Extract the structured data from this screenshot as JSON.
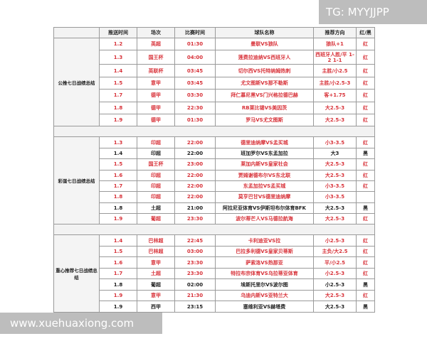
{
  "watermark_top": "TG: MYYJJPP",
  "watermark_bottom": "www.xuehuaxiong.com",
  "headers": [
    "",
    "推送时间",
    "场次",
    "比赛时间",
    "球队名称",
    "推荐方向",
    "红/黑"
  ],
  "sections": [
    {
      "label": "公推七日战绩总结",
      "rows": [
        {
          "date": "1.2",
          "league": "英超",
          "time": "01:30",
          "match": "曼联VS狼队",
          "pick": "狼队+1",
          "result": "红",
          "color": "red"
        },
        {
          "date": "1.3",
          "league": "国王杯",
          "time": "04:00",
          "match": "莲费拉迪纳VS西班牙人",
          "pick": "西班牙人胜/平 1-2 1-1",
          "result": "红",
          "color": "red"
        },
        {
          "date": "1.4",
          "league": "英联杯",
          "time": "03:45",
          "match": "切尔西VS托特纳姆热刺",
          "pick": "主胜/小2.5",
          "result": "红",
          "color": "red"
        },
        {
          "date": "1.5",
          "league": "意甲",
          "time": "03:45",
          "match": "尤文图斯VS那不勒斯",
          "pick": "主胜/小2.5-3",
          "result": "红",
          "color": "red"
        },
        {
          "date": "1.7",
          "league": "德甲",
          "time": "03:30",
          "match": "拜仁慕尼黑VS门兴格拉德巴赫",
          "pick": "客+1.75",
          "result": "红",
          "color": "red"
        },
        {
          "date": "1.8",
          "league": "德甲",
          "time": "22:30",
          "match": "RB莱比锡VS美因茨",
          "pick": "大2.5-3",
          "result": "红",
          "color": "red"
        },
        {
          "date": "1.9",
          "league": "德甲",
          "time": "01:30",
          "match": "罗马VS尤文图斯",
          "pick": "大2.5-3",
          "result": "红",
          "color": "red"
        }
      ]
    },
    {
      "label": "彩蛋七日战绩总结",
      "rows": [
        {
          "date": "1.3",
          "league": "印超",
          "time": "22:00",
          "match": "德里迪纳摩VS孟买城",
          "pick": "小3-3.5",
          "result": "红",
          "color": "red"
        },
        {
          "date": "1.4",
          "league": "印超",
          "time": "22:00",
          "match": "班加罗尔VS东孟加拉",
          "pick": "大3",
          "result": "黑",
          "color": "black"
        },
        {
          "date": "1.5",
          "league": "国王杯",
          "time": "23:00",
          "match": "莱加内斯VS皇家社会",
          "pick": "大2.5-3",
          "result": "红",
          "color": "red"
        },
        {
          "date": "1.6",
          "league": "印超",
          "time": "22:00",
          "match": "贾姆谢德布尔VS东北联",
          "pick": "大2.5-3",
          "result": "红",
          "color": "red"
        },
        {
          "date": "1.7",
          "league": "印超",
          "time": "22:00",
          "match": "东孟加拉VS孟买城",
          "pick": "小3-3.5",
          "result": "红",
          "color": "red"
        },
        {
          "date": "1.8",
          "league": "印超",
          "time": "22:00",
          "match": "莫亨巴甘VS德里迪纳摩",
          "pick": "小3-3.5",
          "result": "",
          "color": "red"
        },
        {
          "date": "1.8",
          "league": "土超",
          "time": "21:00",
          "match": "阿拉尼亚体育VS伊斯坦布尔体育BFK",
          "pick": "大2.5-3",
          "result": "黑",
          "color": "black"
        },
        {
          "date": "1.9",
          "league": "葡超",
          "time": "23:30",
          "match": "波尔蒂芒人VS马德拉航海",
          "pick": "大2.5-3",
          "result": "红",
          "color": "red"
        }
      ]
    },
    {
      "label": "重心推荐七日战绩总结",
      "rows": [
        {
          "date": "1.4",
          "league": "巴林超",
          "time": "22:45",
          "match": "卡利迪亚VS拉",
          "pick": "小2.5-3",
          "result": "红",
          "color": "red"
        },
        {
          "date": "1.5",
          "league": "巴林超",
          "time": "03:00",
          "match": "巴拉多利德VS皇家贝蒂斯",
          "pick": "主负/大2.5",
          "result": "红",
          "color": "red"
        },
        {
          "date": "1.6",
          "league": "意甲",
          "time": "23:30",
          "match": "萨索洛VS热那亚",
          "pick": "平/小2.5",
          "result": "红",
          "color": "red"
        },
        {
          "date": "1.7",
          "league": "土超",
          "time": "23:30",
          "match": "特拉布宗体育VS乌拉蒂亚体育",
          "pick": "小2.5-3",
          "result": "红",
          "color": "red"
        },
        {
          "date": "1.8",
          "league": "葡超",
          "time": "02:00",
          "match": "埃斯托里尔VS波尔图",
          "pick": "小2.5-3",
          "result": "黑",
          "color": "black"
        },
        {
          "date": "1.9",
          "league": "意甲",
          "time": "21:30",
          "match": "乌迪内斯VS亚特兰大",
          "pick": "大2.5-3",
          "result": "红",
          "color": "red"
        },
        {
          "date": "1.9",
          "league": "西甲",
          "time": "23:15",
          "match": "塞维利亚VS赫塔费",
          "pick": "大2.5-3",
          "result": "黑",
          "color": "black"
        }
      ]
    }
  ]
}
